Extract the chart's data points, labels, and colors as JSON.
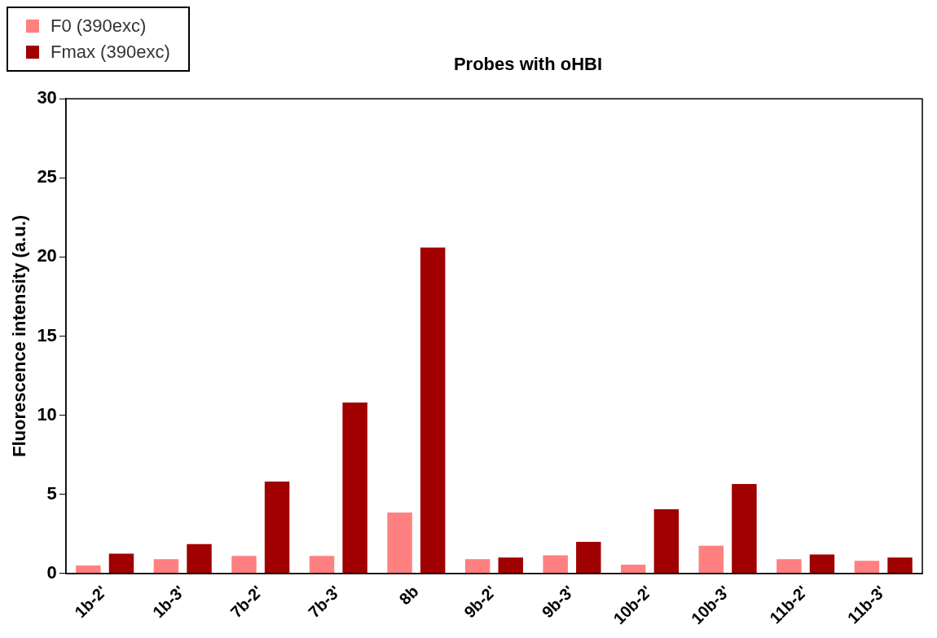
{
  "chart_data": {
    "type": "bar",
    "title": "Probes with oHBI",
    "ylabel": "Fluorescence intensity (a.u.)",
    "categories": [
      "1b-2'",
      "1b-3'",
      "7b-2'",
      "7b-3'",
      "8b",
      "9b-2'",
      "9b-3'",
      "10b-2'",
      "10b-3'",
      "11b-2'",
      "11b-3'"
    ],
    "series": [
      {
        "name": "F0 (390exc)",
        "color": "#ff8080",
        "values": [
          0.5,
          0.9,
          1.1,
          1.1,
          3.85,
          0.9,
          1.15,
          0.55,
          1.75,
          0.9,
          0.8
        ]
      },
      {
        "name": "Fmax (390exc)",
        "color": "#a00000",
        "values": [
          1.25,
          1.85,
          5.8,
          10.8,
          20.6,
          1.0,
          2.0,
          4.05,
          5.65,
          1.2,
          1.0
        ]
      }
    ],
    "ylim": [
      0,
      30
    ],
    "yticks": [
      0,
      5,
      10,
      15,
      20,
      25,
      30
    ],
    "grid": false,
    "legend": "top left"
  }
}
